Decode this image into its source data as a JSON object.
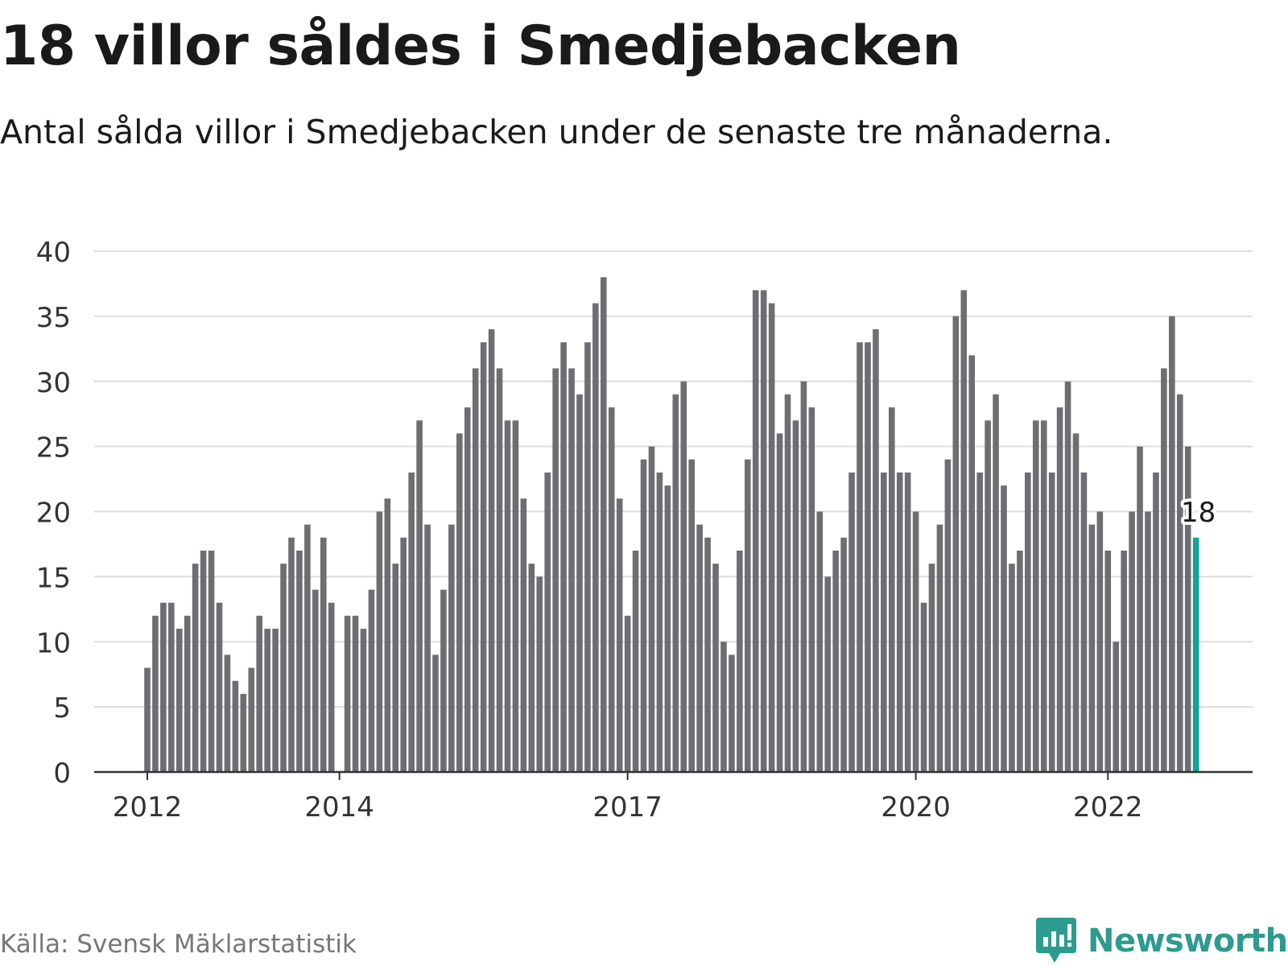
{
  "title": "18 villor såldes i Smedjebacken",
  "subtitle": "Antal sålda villor i Smedjebacken under de senaste tre månaderna.",
  "source": "Källa: Svensk Mäklarstatistik",
  "brand": {
    "name": "Newsworthy",
    "color": "#2d9b8d",
    "icon": "newsworthy-logo-icon"
  },
  "colors": {
    "bar": "#6e6d72",
    "highlight": "#12a39a",
    "grid": "#dddddd",
    "axis": "#333333"
  },
  "chart_data": {
    "type": "bar",
    "x_start": "2012-01",
    "x_step": "month",
    "values": [
      8,
      12,
      13,
      13,
      11,
      12,
      16,
      17,
      17,
      13,
      9,
      7,
      6,
      8,
      12,
      11,
      11,
      16,
      18,
      17,
      19,
      14,
      18,
      13,
      null,
      12,
      12,
      11,
      14,
      20,
      21,
      16,
      18,
      23,
      27,
      19,
      9,
      14,
      19,
      26,
      28,
      31,
      33,
      34,
      31,
      27,
      27,
      21,
      16,
      15,
      23,
      31,
      33,
      31,
      29,
      33,
      36,
      38,
      28,
      21,
      12,
      17,
      24,
      25,
      23,
      22,
      29,
      30,
      24,
      19,
      18,
      16,
      10,
      9,
      17,
      24,
      37,
      37,
      36,
      26,
      29,
      27,
      30,
      28,
      20,
      15,
      17,
      18,
      23,
      33,
      33,
      34,
      23,
      28,
      23,
      23,
      20,
      13,
      16,
      19,
      24,
      35,
      37,
      32,
      23,
      27,
      29,
      22,
      16,
      17,
      23,
      27,
      27,
      23,
      28,
      30,
      26,
      23,
      19,
      20,
      17,
      10,
      17,
      20,
      25,
      20,
      23,
      31,
      35,
      29,
      25,
      18
    ],
    "highlight_last": true,
    "highlight_label": "18",
    "ylim": [
      0,
      40
    ],
    "yticks": [
      0,
      5,
      10,
      15,
      20,
      25,
      30,
      35,
      40
    ],
    "xticks": [
      {
        "label": "2012",
        "index": 0
      },
      {
        "label": "2014",
        "index": 24
      },
      {
        "label": "2017",
        "index": 60
      },
      {
        "label": "2020",
        "index": 96
      },
      {
        "label": "2022",
        "index": 120
      }
    ],
    "grid": true,
    "legend": "none",
    "xlabel": "",
    "ylabel": ""
  }
}
